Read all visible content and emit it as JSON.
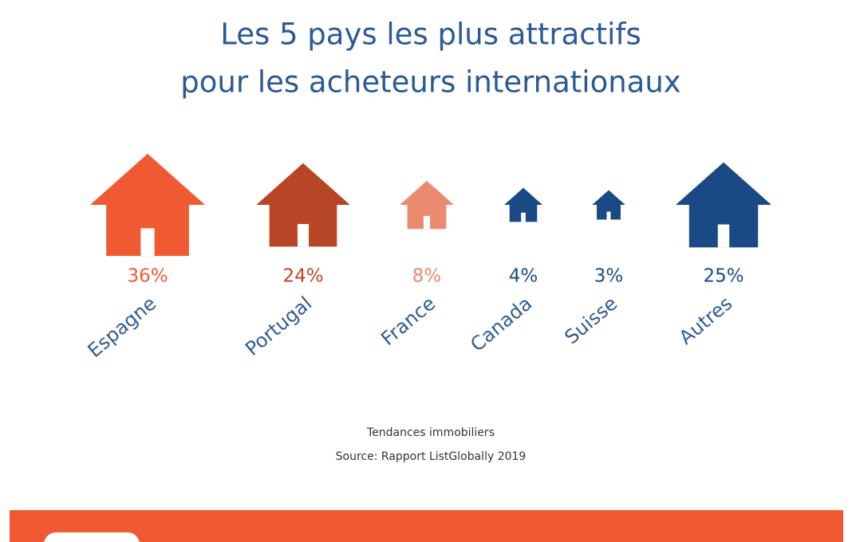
{
  "chart_data": {
    "type": "pictograph",
    "title": [
      "Les 5 pays les plus attractifs",
      "pour les acheteurs internationaux"
    ],
    "categories": [
      "Espagne",
      "Portugal",
      "France",
      "Canada",
      "Suisse",
      "Autres"
    ],
    "values": [
      36,
      24,
      8,
      4,
      3,
      25
    ],
    "value_labels": [
      "36%",
      "24%",
      "8%",
      "4%",
      "3%",
      "25%"
    ],
    "colors": [
      "#f05a33",
      "#b94527",
      "#ec8a70",
      "#1a4a86",
      "#1a4a86",
      "#1a4a86"
    ],
    "notes": [
      "Tendances immobiliers",
      "Source: Rapport ListGlobally 2019"
    ]
  }
}
